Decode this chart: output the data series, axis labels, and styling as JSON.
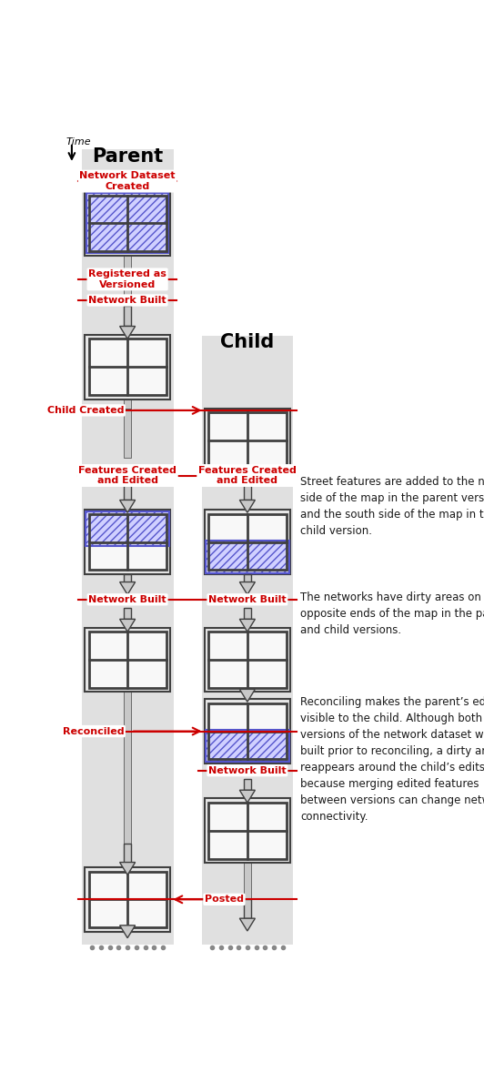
{
  "white": "#ffffff",
  "red": "#cc0000",
  "notes": {
    "note1": "Street features are added to the north\nside of the map in the parent version\nand the south side of the map in the\nchild version.",
    "note2": "The networks have dirty areas on\nopposite ends of the map in the parent\nand child versions.",
    "note3": "Reconciling makes the parent’s edits\nvisible to the child. Although both\nversions of the network dataset were\nbuilt prior to reconciling, a dirty area\nreappears around the child’s edits\nbecause merging edited features\nbetween versions can change network\nconnectivity."
  }
}
